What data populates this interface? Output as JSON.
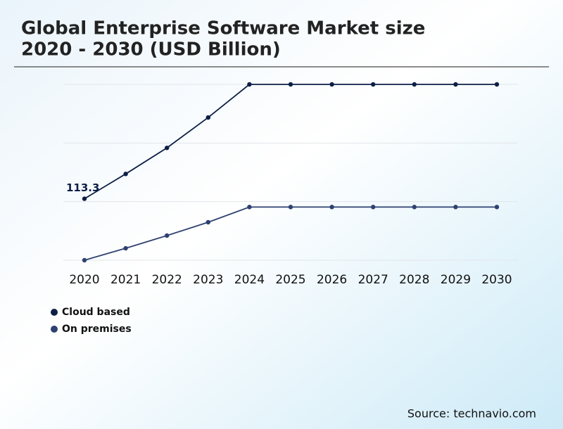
{
  "chart_data": {
    "type": "line",
    "title_lines": [
      "Global Enterprise Software Market size",
      "2020 - 2030 (USD Billion)"
    ],
    "categories": [
      "2020",
      "2021",
      "2022",
      "2023",
      "2024",
      "2025",
      "2026",
      "2027",
      "2028",
      "2029",
      "2030"
    ],
    "series": [
      {
        "name": "Cloud based",
        "color": "#0d1f45",
        "values": [
          113.3,
          159,
          207,
          263,
          324,
          324,
          324,
          324,
          324,
          324,
          324
        ],
        "value_labels": [
          "113.3",
          null,
          null,
          null,
          null,
          null,
          null,
          null,
          null,
          null,
          null
        ]
      },
      {
        "name": "On premises",
        "color": "#2e4170",
        "values": [
          0,
          22,
          45.4,
          70,
          98,
          98,
          98,
          98,
          98,
          98,
          98
        ]
      }
    ],
    "ylim": [
      0,
      324
    ],
    "yticks": [
      0,
      108,
      216,
      324
    ],
    "grid": true,
    "tick_labels_shown": false,
    "legend": "bottom-left",
    "source": "Source: technavio.com"
  }
}
